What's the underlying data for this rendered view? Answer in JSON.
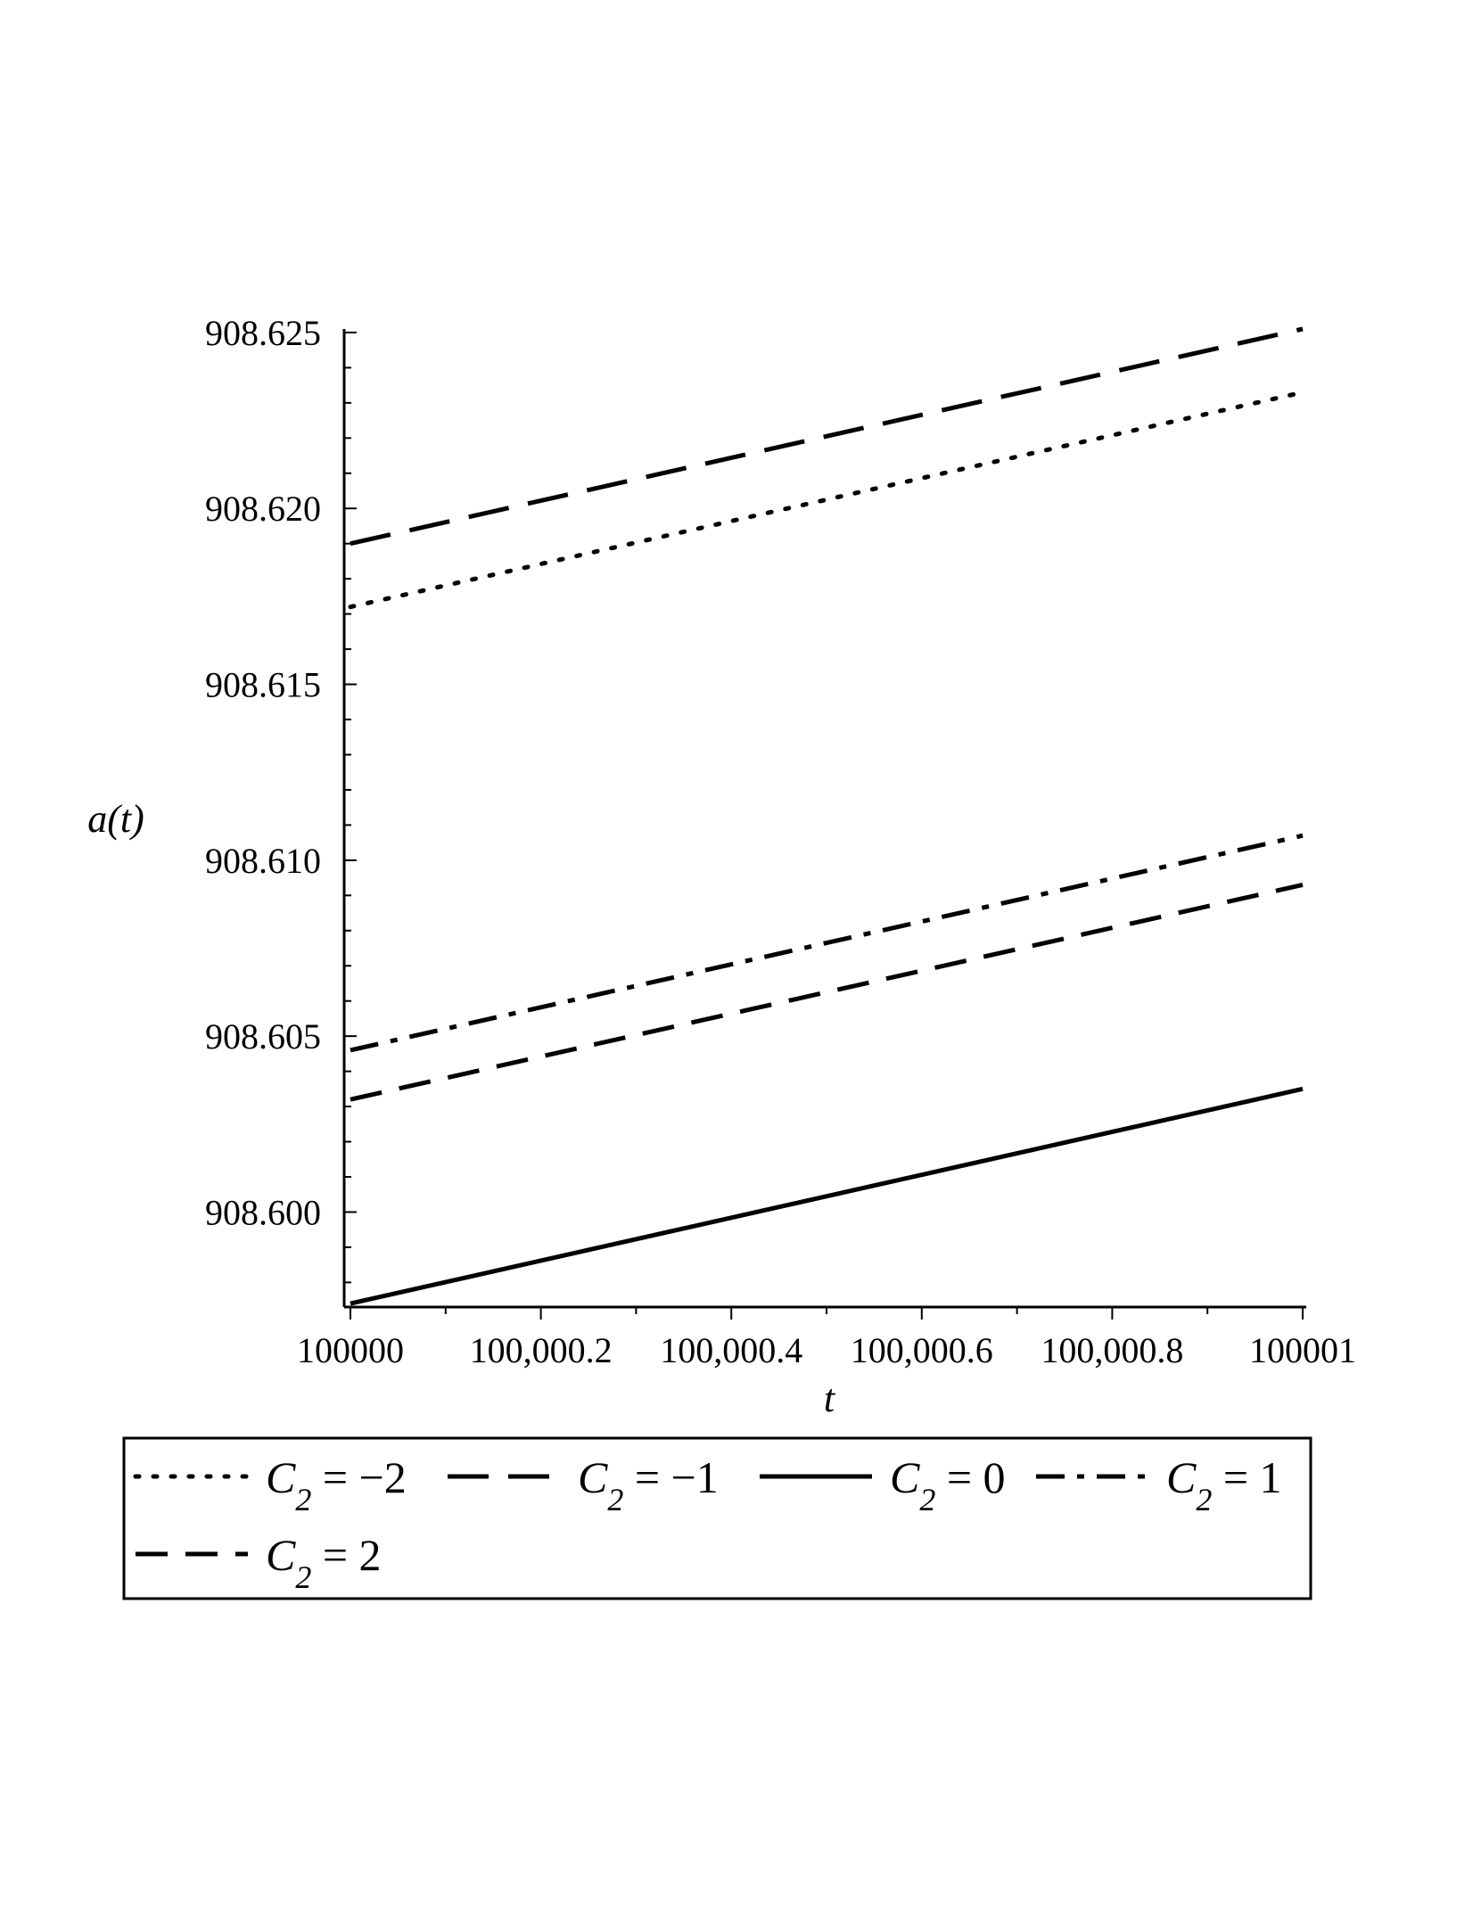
{
  "chart_data": {
    "type": "line",
    "xlabel": "t",
    "ylabel": "a(t)",
    "xlim": [
      100000,
      100001
    ],
    "ylim": [
      908.5973,
      908.6251
    ],
    "x_ticks": [
      {
        "value": 100000,
        "label": "100000"
      },
      {
        "value": 100000.2,
        "label": "100,000.2"
      },
      {
        "value": 100000.4,
        "label": "100,000.4"
      },
      {
        "value": 100000.6,
        "label": "100,000.6"
      },
      {
        "value": 100000.8,
        "label": "100,000.8"
      },
      {
        "value": 100001,
        "label": "100001"
      }
    ],
    "y_ticks": [
      {
        "value": 908.6,
        "label": "908.600"
      },
      {
        "value": 908.605,
        "label": "908.605"
      },
      {
        "value": 908.61,
        "label": "908.610"
      },
      {
        "value": 908.615,
        "label": "908.615"
      },
      {
        "value": 908.62,
        "label": "908.620"
      },
      {
        "value": 908.625,
        "label": "908.625"
      }
    ],
    "grid": false,
    "legend_position": "bottom",
    "series": [
      {
        "name": "C2 = -2",
        "legend_var": "C",
        "legend_sub": "2",
        "legend_rest": " = −2",
        "style": "dotted",
        "x": [
          100000,
          100001
        ],
        "y": [
          908.6172,
          908.6233
        ]
      },
      {
        "name": "C2 = -1",
        "legend_var": "C",
        "legend_sub": "2",
        "legend_rest": " = −1",
        "style": "longdash",
        "x": [
          100000,
          100001
        ],
        "y": [
          908.619,
          908.6251
        ]
      },
      {
        "name": "C2 = 0",
        "legend_var": "C",
        "legend_sub": "2",
        "legend_rest": " = 0",
        "style": "solid",
        "x": [
          100000,
          100001
        ],
        "y": [
          908.5974,
          908.6035
        ]
      },
      {
        "name": "C2 = 1",
        "legend_var": "C",
        "legend_sub": "2",
        "legend_rest": " = 1",
        "style": "dashdot",
        "x": [
          100000,
          100001
        ],
        "y": [
          908.6046,
          908.6107
        ]
      },
      {
        "name": "C2 = 2",
        "legend_var": "C",
        "legend_sub": "2",
        "legend_rest": " = 2",
        "style": "dash",
        "x": [
          100000,
          100001
        ],
        "y": [
          908.6032,
          908.6093
        ]
      }
    ]
  }
}
